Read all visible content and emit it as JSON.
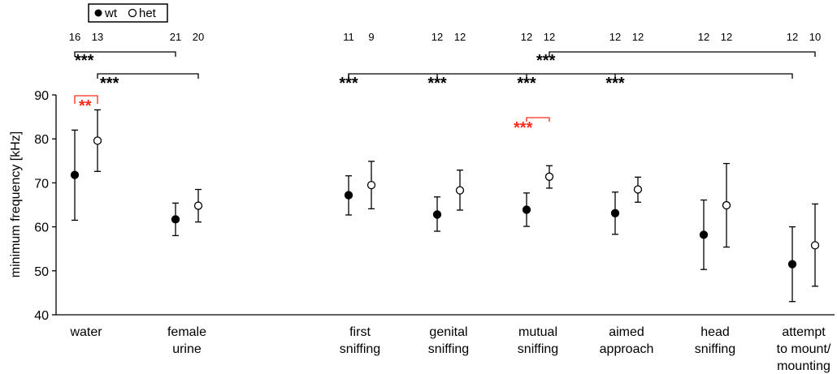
{
  "chart_data": {
    "type": "scatter",
    "ylabel": "minimum frequency [kHz]",
    "ylim": [
      40,
      90
    ],
    "yticks": [
      40,
      50,
      60,
      70,
      80,
      90
    ],
    "legend": {
      "placement": "top-left",
      "entries": [
        "wt",
        "het"
      ]
    },
    "categories": [
      [
        "water"
      ],
      [
        "female",
        "urine"
      ],
      [
        "first",
        "sniffing"
      ],
      [
        "genital",
        "sniffing"
      ],
      [
        "mutual",
        "sniffing"
      ],
      [
        "aimed",
        "approach"
      ],
      [
        "head",
        "sniffing"
      ],
      [
        "attempt",
        "to mount/",
        "mounting"
      ]
    ],
    "series": [
      {
        "name": "wt",
        "filled": true,
        "mean": [
          71.8,
          61.7,
          67.2,
          62.8,
          63.9,
          63.1,
          58.2,
          51.5
        ],
        "lower": [
          61.5,
          58.0,
          62.7,
          59.0,
          60.1,
          58.3,
          50.3,
          43.0
        ],
        "upper": [
          82.0,
          65.4,
          71.6,
          66.8,
          67.7,
          67.9,
          66.1,
          60.0
        ],
        "n": [
          "16",
          "21",
          "11",
          "12",
          "12",
          "12",
          "12",
          "12"
        ]
      },
      {
        "name": "het",
        "filled": false,
        "mean": [
          79.6,
          64.8,
          69.5,
          68.3,
          71.4,
          68.5,
          64.9,
          55.8
        ],
        "lower": [
          72.6,
          61.1,
          64.1,
          63.8,
          68.8,
          65.6,
          55.4,
          46.5
        ],
        "upper": [
          86.6,
          68.5,
          74.9,
          72.9,
          73.9,
          71.3,
          74.4,
          65.2
        ],
        "n": [
          "13",
          "20",
          "9",
          "12",
          "12",
          "12",
          "12",
          "10"
        ]
      }
    ],
    "significance": [
      {
        "label": "***",
        "color": "#000000",
        "from": [
          0,
          "wt"
        ],
        "to": [
          1,
          "wt"
        ]
      },
      {
        "label": "***",
        "color": "#000000",
        "from": [
          0,
          "het"
        ],
        "to": [
          1,
          "het"
        ]
      },
      {
        "label": "**",
        "color": "#ff2a1a",
        "from": [
          0,
          "wt"
        ],
        "to": [
          0,
          "het"
        ]
      },
      {
        "label": "***",
        "color": "#000000",
        "from": [
          2,
          "wt"
        ],
        "to": [
          7,
          "wt"
        ],
        "marks": [
          2,
          3,
          4,
          5
        ]
      },
      {
        "label": "***",
        "color": "#000000",
        "from": [
          4,
          "het"
        ],
        "to": [
          7,
          "het"
        ]
      },
      {
        "label": "***",
        "color": "#ff2a1a",
        "from": [
          4,
          "wt"
        ],
        "to": [
          4,
          "het"
        ]
      }
    ]
  }
}
